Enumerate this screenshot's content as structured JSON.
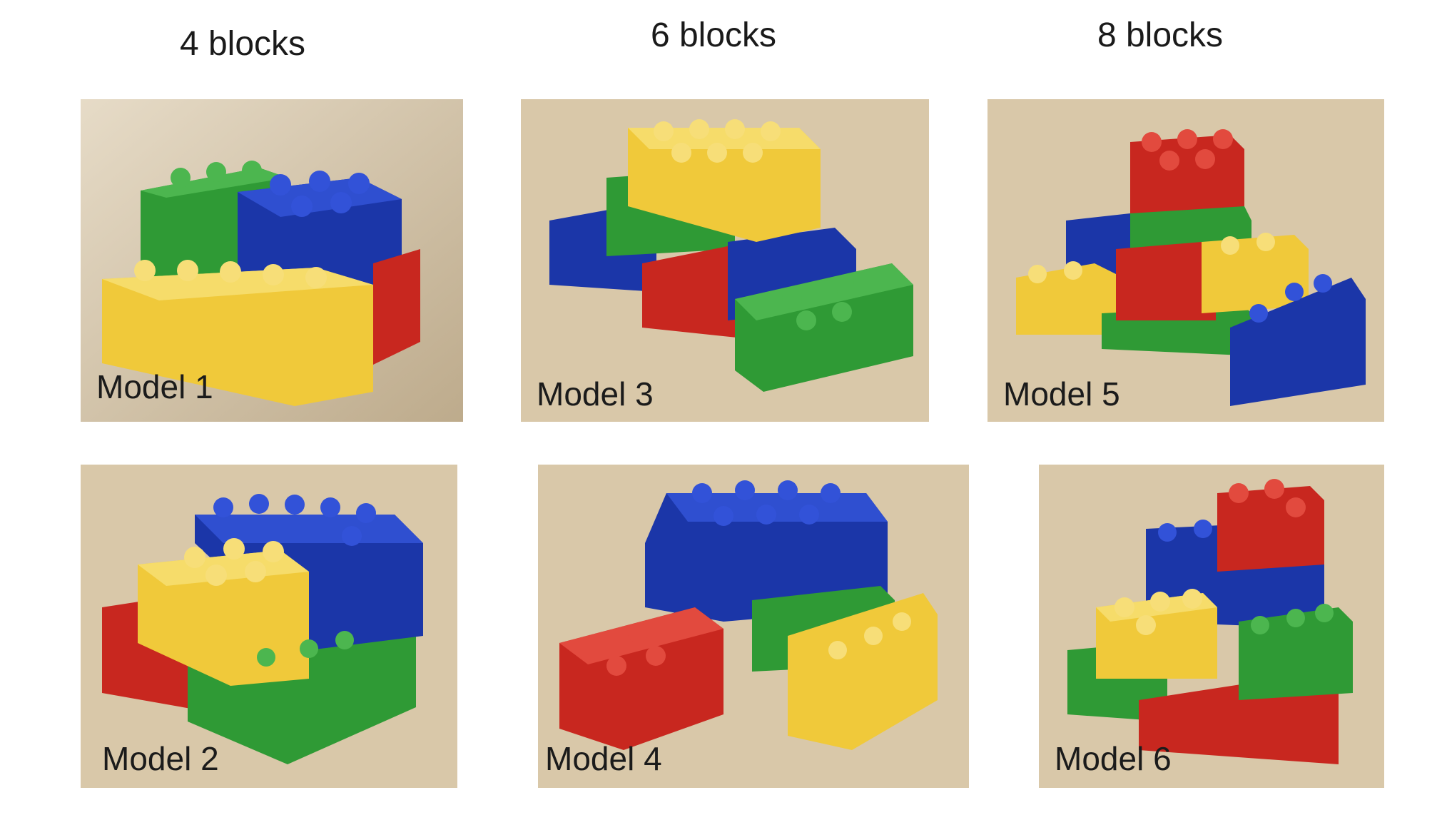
{
  "columns": [
    {
      "label": "4 blocks"
    },
    {
      "label": "6 blocks"
    },
    {
      "label": "8 blocks"
    }
  ],
  "models": [
    {
      "label": "Model 1"
    },
    {
      "label": "Model 2"
    },
    {
      "label": "Model 3"
    },
    {
      "label": "Model 4"
    },
    {
      "label": "Model 5"
    },
    {
      "label": "Model 6"
    }
  ],
  "colors": {
    "red": "#c8271f",
    "green": "#2f9a35",
    "blue": "#1b36a8",
    "yellow": "#f0c93a",
    "table": "#d8c6a6"
  }
}
